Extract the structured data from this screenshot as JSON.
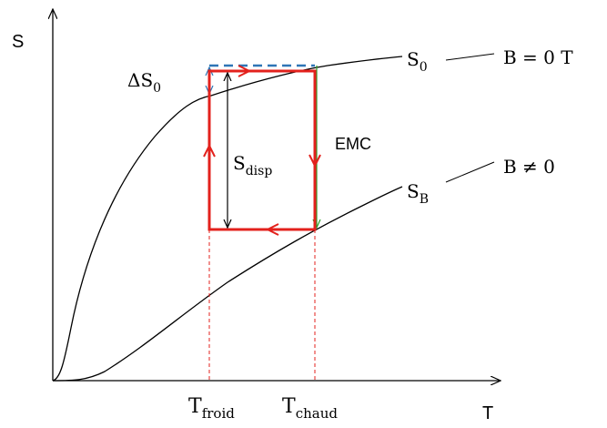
{
  "axes": {
    "y_label": "S",
    "x_label": "T"
  },
  "curves": {
    "s0": {
      "name": "S",
      "sub": "0",
      "field": "B = 0 T"
    },
    "sb": {
      "name": "S",
      "sub": "B",
      "field": "B ≠ 0"
    }
  },
  "annotations": {
    "delta_s0": {
      "prefix": "ΔS",
      "sub": "0"
    },
    "s_disp": {
      "name": "S",
      "sub": "disp"
    },
    "emc": "EMC"
  },
  "ticks": {
    "t_froid": {
      "name": "T",
      "sub": "froid"
    },
    "t_chaud": {
      "name": "T",
      "sub": "chaud"
    }
  },
  "colors": {
    "cycle": "#e3211c",
    "delta": "#2e75b6",
    "emc": "#2ca02c",
    "curve": "#000000",
    "guide": "#e3211c"
  }
}
